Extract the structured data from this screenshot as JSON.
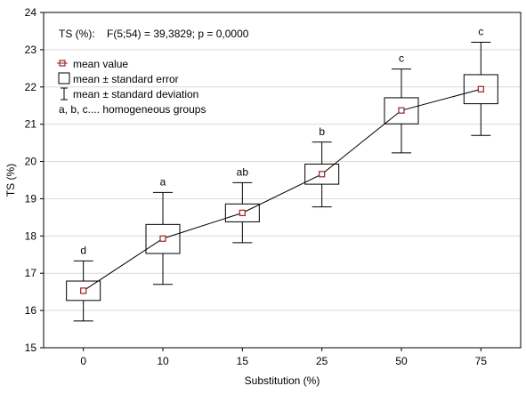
{
  "chart_data": {
    "type": "box",
    "title": "",
    "stat_text": "TS (%):    F(5;54) = 39,3829; p = 0,0000",
    "xlabel": "Substitution (%)",
    "ylabel": "TS (%)",
    "ylim": [
      15,
      24
    ],
    "yticks": [
      15,
      16,
      17,
      18,
      19,
      20,
      21,
      22,
      23,
      24
    ],
    "grid": true,
    "legend_position": "top-left",
    "legend": {
      "mean": "mean value",
      "se": "mean ± standard error",
      "sd": "mean ± standard deviation",
      "groups": "a, b, c.... homogeneous groups"
    },
    "categories": [
      "0",
      "10",
      "15",
      "25",
      "50",
      "75"
    ],
    "mean": [
      16.53,
      17.93,
      18.62,
      19.66,
      21.37,
      21.94
    ],
    "se_low": [
      16.27,
      17.53,
      18.38,
      19.39,
      21.01,
      21.55
    ],
    "se_high": [
      16.79,
      18.31,
      18.86,
      19.93,
      21.71,
      22.33
    ],
    "sd_low": [
      15.72,
      16.7,
      17.82,
      18.78,
      20.23,
      20.7
    ],
    "sd_high": [
      17.33,
      19.17,
      19.43,
      20.52,
      22.48,
      23.2
    ],
    "groups": [
      "d",
      "a",
      "ab",
      "b",
      "c",
      "c"
    ],
    "colors": {
      "mean_marker": "#9c2020",
      "line": "#000000",
      "grid": "#d9d9d9"
    }
  }
}
